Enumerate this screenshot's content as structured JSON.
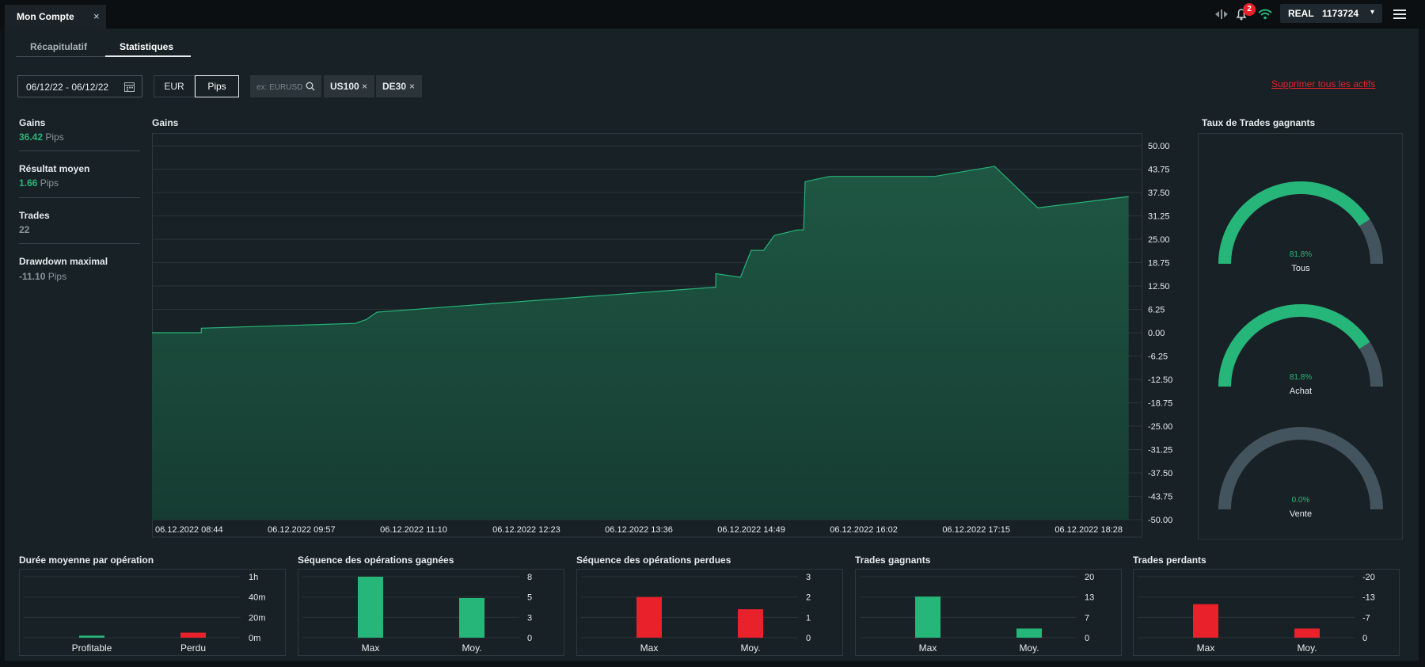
{
  "header": {
    "tab_title": "Mon Compte",
    "tab_close": "×",
    "icons": [
      "transfer-icon",
      "bell-icon",
      "wifi-icon",
      "menu-icon"
    ],
    "notifications_count": "2",
    "account_type": "REAL",
    "account_number": "1173724",
    "account_caret": "▾"
  },
  "subtabs": [
    "Récapitulatif",
    "Statistiques"
  ],
  "active_subtab": "Statistiques",
  "filters": {
    "date_range": "06/12/22 - 06/12/22",
    "currency_options": [
      "EUR",
      "Pips"
    ],
    "selected_unit": "Pips",
    "search_placeholder": "ex: EURUSD",
    "chips": [
      {
        "label": "US100",
        "remove": "×"
      },
      {
        "label": "DE30",
        "remove": "×"
      }
    ],
    "remove_all": "Supprimer tous les actifs"
  },
  "stats": [
    {
      "label": "Gains",
      "value": "36.42",
      "unit": "Pips",
      "value_color": "#26b679"
    },
    {
      "label": "Résultat moyen",
      "value": "1.66",
      "unit": "Pips",
      "value_color": "#26b679"
    },
    {
      "label": "Trades",
      "value": "22",
      "unit": "",
      "value_color": "#8b959b"
    },
    {
      "label": "Drawdown maximal",
      "value": "-11.10",
      "unit": "Pips",
      "value_color": "#8b959b"
    }
  ],
  "gains_chart_title": "Gains",
  "winrate_title": "Taux de Trades gagnants",
  "colors": {
    "green": "#26b679",
    "red": "#e8212b",
    "gauge_track": "#43545e",
    "grid": "#2a3439"
  },
  "chart_data": [
    {
      "type": "area",
      "title": "Gains",
      "ylim": [
        -50,
        50
      ],
      "y_ticks": [
        "50.00",
        "43.75",
        "37.50",
        "31.25",
        "25.00",
        "18.75",
        "12.50",
        "6.25",
        "0.00",
        "-6.25",
        "-12.50",
        "-18.75",
        "-25.00",
        "-31.25",
        "-37.50",
        "-43.75",
        "-50.00"
      ],
      "x_ticks": [
        "06.12.2022 08:44",
        "06.12.2022 09:57",
        "06.12.2022 11:10",
        "06.12.2022 12:23",
        "06.12.2022 13:36",
        "06.12.2022 14:49",
        "06.12.2022 16:02",
        "06.12.2022 17:15",
        "06.12.2022 18:28"
      ],
      "x": [
        "06.12.2022 08:44",
        "06.12.2022 09:16",
        "06.12.2022 09:16",
        "06.12.2022 10:56",
        "06.12.2022 11:03",
        "06.12.2022 11:10",
        "06.12.2022 14:50",
        "06.12.2022 14:50",
        "06.12.2022 15:06",
        "06.12.2022 15:13",
        "06.12.2022 15:21",
        "06.12.2022 15:28",
        "06.12.2022 15:43",
        "06.12.2022 15:47",
        "06.12.2022 15:48",
        "06.12.2022 16:04",
        "06.12.2022 17:12",
        "06.12.2022 17:51",
        "06.12.2022 18:19",
        "06.12.2022 19:18"
      ],
      "values": [
        0.0,
        0.0,
        1.2,
        2.5,
        3.5,
        5.5,
        12.2,
        15.8,
        14.8,
        22.0,
        22.0,
        26.0,
        27.5,
        27.5,
        40.4,
        41.8,
        41.8,
        44.5,
        33.4,
        36.42
      ]
    },
    {
      "type": "gauge",
      "title": "Taux de Trades gagnants",
      "series": [
        {
          "name": "Tous",
          "value": 81.8,
          "label": "81.8%"
        },
        {
          "name": "Achat",
          "value": 81.8,
          "label": "81.8%"
        },
        {
          "name": "Vente",
          "value": 0.0,
          "label": "0.0%"
        }
      ]
    },
    {
      "type": "bar",
      "title": "Durée moyenne par opération",
      "categories": [
        "Profitable",
        "Perdu"
      ],
      "values": [
        2,
        5
      ],
      "colors": [
        "#26b679",
        "#e8212b"
      ],
      "ylim": [
        0,
        60
      ],
      "y_ticks": [
        {
          "v": 60,
          "label": "1h"
        },
        {
          "v": 40,
          "label": "40m"
        },
        {
          "v": 20,
          "label": "20m"
        },
        {
          "v": 0,
          "label": "0m"
        }
      ]
    },
    {
      "type": "bar",
      "title": "Séquence des opérations gagnées",
      "categories": [
        "Max",
        "Moy."
      ],
      "values": [
        8,
        5.2
      ],
      "colors": [
        "#26b679",
        "#26b679"
      ],
      "ylim": [
        0,
        8
      ],
      "y_ticks": [
        {
          "v": 8,
          "label": "8"
        },
        {
          "v": 5.33,
          "label": "5"
        },
        {
          "v": 2.67,
          "label": "3"
        },
        {
          "v": 0,
          "label": "0"
        }
      ]
    },
    {
      "type": "bar",
      "title": "Séquence des opérations perdues",
      "categories": [
        "Max",
        "Moy."
      ],
      "values": [
        2,
        1.4
      ],
      "colors": [
        "#e8212b",
        "#e8212b"
      ],
      "ylim": [
        0,
        3
      ],
      "y_ticks": [
        {
          "v": 3,
          "label": "3"
        },
        {
          "v": 2,
          "label": "2"
        },
        {
          "v": 1,
          "label": "1"
        },
        {
          "v": 0,
          "label": "0"
        }
      ]
    },
    {
      "type": "bar",
      "title": "Trades gagnants",
      "categories": [
        "Max",
        "Moy."
      ],
      "values": [
        13.5,
        3
      ],
      "colors": [
        "#26b679",
        "#26b679"
      ],
      "ylim": [
        0,
        20
      ],
      "y_ticks": [
        {
          "v": 20,
          "label": "20"
        },
        {
          "v": 13.33,
          "label": "13"
        },
        {
          "v": 6.67,
          "label": "7"
        },
        {
          "v": 0,
          "label": "0"
        }
      ]
    },
    {
      "type": "bar",
      "title": "Trades perdants",
      "categories": [
        "Max",
        "Moy."
      ],
      "values": [
        11,
        3
      ],
      "colors": [
        "#e8212b",
        "#e8212b"
      ],
      "ylim": [
        0,
        20
      ],
      "y_ticks": [
        {
          "v": 20,
          "label": "-20"
        },
        {
          "v": 13.33,
          "label": "-13"
        },
        {
          "v": 6.67,
          "label": "-7"
        },
        {
          "v": 0,
          "label": "0"
        }
      ]
    }
  ]
}
